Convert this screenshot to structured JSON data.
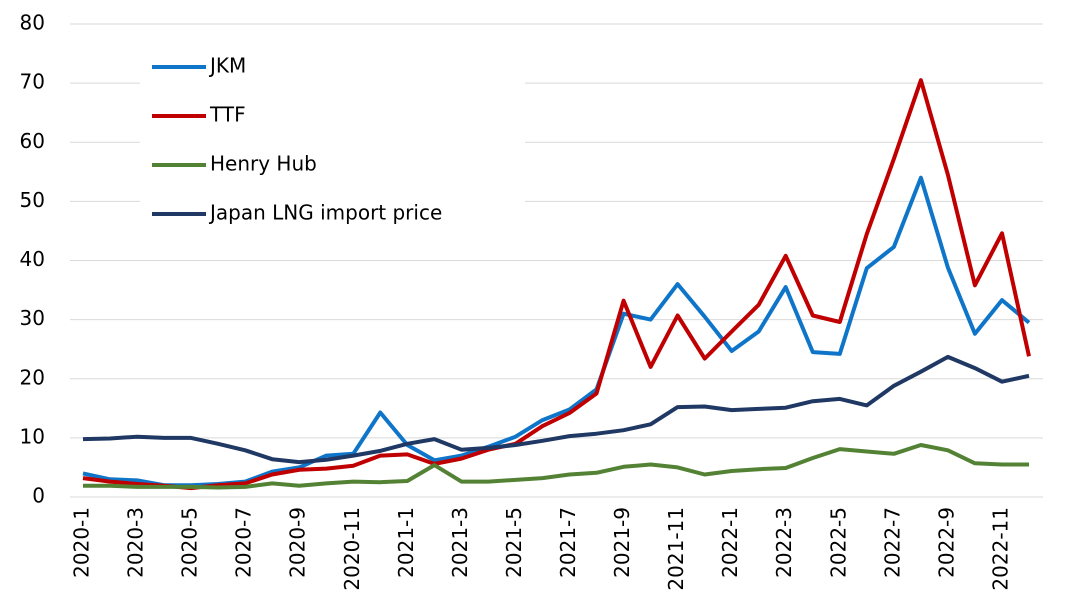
{
  "chart_data": {
    "type": "line",
    "categories": [
      "2020-1",
      null,
      "2020-3",
      null,
      "2020-5",
      null,
      "2020-7",
      null,
      "2020-9",
      null,
      "2020-11",
      null,
      "2021-1",
      null,
      "2021-3",
      null,
      "2021-5",
      null,
      "2021-7",
      null,
      "2021-9",
      null,
      "2021-11",
      null,
      "2022-1",
      null,
      "2022-3",
      null,
      "2022-5",
      null,
      "2022-7",
      null,
      "2022-9",
      null,
      "2022-11",
      null
    ],
    "series": [
      {
        "name": "JKM",
        "color": "#0f75c9",
        "values": [
          4.0,
          3.0,
          2.8,
          2.0,
          2.0,
          2.2,
          2.6,
          4.3,
          5.0,
          7.0,
          7.3,
          14.3,
          8.8,
          6.2,
          7.0,
          8.5,
          10.2,
          13.0,
          14.8,
          18.2,
          31.0,
          30.0,
          36.0,
          30.5,
          24.7,
          28.0,
          35.5,
          24.5,
          24.2,
          38.7,
          42.3,
          54.0,
          38.8,
          27.6,
          33.3,
          29.5
        ]
      },
      {
        "name": "TTF",
        "color": "#c00000",
        "values": [
          3.2,
          2.6,
          2.2,
          1.9,
          1.5,
          2.0,
          2.3,
          3.8,
          4.6,
          4.8,
          5.3,
          7.0,
          7.2,
          5.6,
          6.5,
          8.0,
          9.0,
          12.0,
          14.2,
          17.5,
          33.2,
          22.0,
          30.7,
          23.4,
          28.0,
          32.5,
          40.8,
          30.7,
          29.6,
          44.5,
          57.2,
          70.5,
          54.5,
          35.8,
          44.6,
          23.8
        ]
      },
      {
        "name": "Henry Hub",
        "color": "#548235",
        "values": [
          1.9,
          1.9,
          1.7,
          1.7,
          1.7,
          1.6,
          1.7,
          2.3,
          1.9,
          2.3,
          2.6,
          2.5,
          2.7,
          5.4,
          2.6,
          2.6,
          2.9,
          3.2,
          3.8,
          4.1,
          5.1,
          5.5,
          5.0,
          3.8,
          4.4,
          4.7,
          4.9,
          6.6,
          8.1,
          7.7,
          7.3,
          8.8,
          7.9,
          5.7,
          5.5,
          5.5
        ]
      },
      {
        "name": "Japan LNG import price",
        "color": "#203864",
        "values": [
          9.8,
          9.9,
          10.2,
          10.0,
          10.0,
          9.0,
          7.9,
          6.4,
          5.9,
          6.3,
          7.0,
          7.8,
          9.0,
          9.8,
          8.0,
          8.3,
          8.8,
          9.5,
          10.3,
          10.7,
          11.3,
          12.3,
          15.2,
          15.3,
          14.7,
          14.9,
          15.1,
          16.2,
          16.6,
          15.5,
          18.8,
          21.2,
          23.7,
          21.8,
          19.5,
          20.5
        ]
      }
    ],
    "ylim": [
      0,
      80
    ],
    "yticks": [
      0,
      10,
      20,
      30,
      40,
      50,
      60,
      70,
      80
    ],
    "grid": true,
    "legend": "upper left"
  }
}
